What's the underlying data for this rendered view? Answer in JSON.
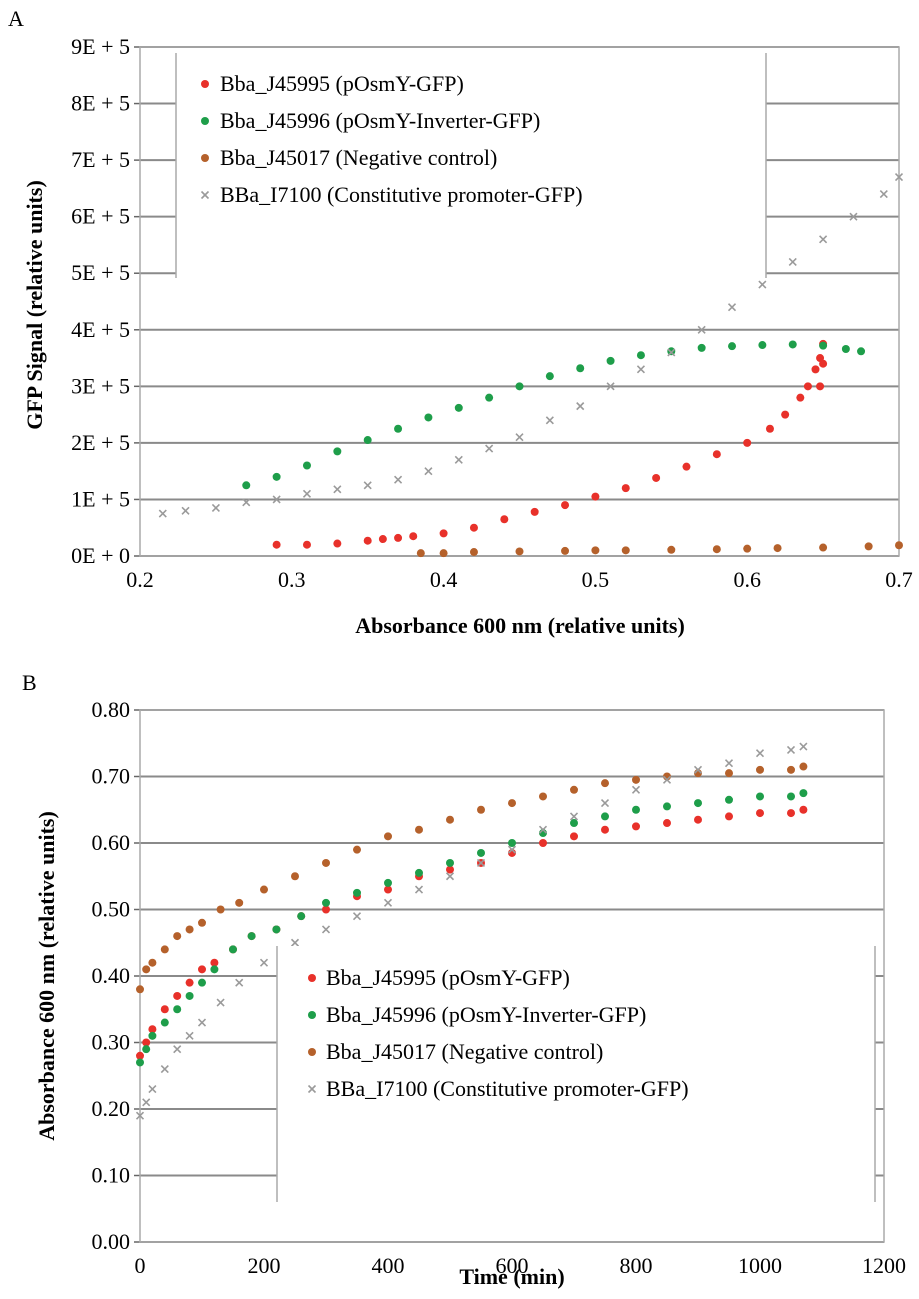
{
  "panels": [
    {
      "letter": "A",
      "chart_data": {
        "type": "scatter",
        "title": "",
        "xlabel": "Absorbance 600 nm (relative units)",
        "ylabel": "GFP Signal (relative units)",
        "xlim": [
          0.2,
          0.7
        ],
        "ylim": [
          0,
          900000
        ],
        "x_ticks": [
          "0.2",
          "0.3",
          "0.4",
          "0.5",
          "0.6",
          "0.7"
        ],
        "y_ticks": [
          "0E + 0",
          "1E + 5",
          "2E + 5",
          "3E + 5",
          "4E + 5",
          "5E + 5",
          "6E + 5",
          "7E + 5",
          "8E + 5",
          "9E + 5"
        ],
        "grid": "horizontal",
        "legend_position": "top-left",
        "series": [
          {
            "name": "Bba_J45995 (pOsmY-GFP)",
            "color": "#e8312a",
            "marker": "dot",
            "x": [
              0.29,
              0.31,
              0.33,
              0.35,
              0.36,
              0.37,
              0.38,
              0.4,
              0.42,
              0.44,
              0.46,
              0.48,
              0.5,
              0.52,
              0.54,
              0.56,
              0.58,
              0.6,
              0.615,
              0.625,
              0.635,
              0.64,
              0.645,
              0.648,
              0.65,
              0.648,
              0.65
            ],
            "y": [
              20000,
              20000,
              22000,
              27000,
              30000,
              32000,
              35000,
              40000,
              50000,
              65000,
              78000,
              90000,
              105000,
              120000,
              138000,
              158000,
              180000,
              200000,
              225000,
              250000,
              280000,
              300000,
              330000,
              350000,
              375000,
              300000,
              340000
            ]
          },
          {
            "name": "Bba_J45996 (pOsmY-Inverter-GFP)",
            "color": "#1e9e4a",
            "marker": "dot",
            "x": [
              0.27,
              0.29,
              0.31,
              0.33,
              0.35,
              0.37,
              0.39,
              0.41,
              0.43,
              0.45,
              0.47,
              0.49,
              0.51,
              0.53,
              0.55,
              0.57,
              0.59,
              0.61,
              0.63,
              0.65,
              0.665,
              0.675
            ],
            "y": [
              125000,
              140000,
              160000,
              185000,
              205000,
              225000,
              245000,
              262000,
              280000,
              300000,
              318000,
              332000,
              345000,
              355000,
              362000,
              368000,
              371000,
              373000,
              374000,
              372000,
              366000,
              362000
            ]
          },
          {
            "name": "Bba_J45017 (Negative control)",
            "color": "#b5612b",
            "marker": "dot",
            "x": [
              0.385,
              0.4,
              0.42,
              0.45,
              0.48,
              0.5,
              0.52,
              0.55,
              0.58,
              0.6,
              0.62,
              0.65,
              0.68,
              0.7
            ],
            "y": [
              5000,
              5000,
              7000,
              8000,
              9000,
              10000,
              10000,
              11000,
              12000,
              13000,
              14000,
              15000,
              17000,
              19000
            ]
          },
          {
            "name": "BBa_I7100 (Constitutive promoter-GFP)",
            "color": "#9a9a9a",
            "marker": "x",
            "x": [
              0.215,
              0.23,
              0.25,
              0.27,
              0.29,
              0.31,
              0.33,
              0.35,
              0.37,
              0.39,
              0.41,
              0.43,
              0.45,
              0.47,
              0.49,
              0.51,
              0.53,
              0.55,
              0.57,
              0.59,
              0.61,
              0.63,
              0.65,
              0.67,
              0.69,
              0.7
            ],
            "y": [
              75000,
              80000,
              85000,
              95000,
              100000,
              110000,
              118000,
              125000,
              135000,
              150000,
              170000,
              190000,
              210000,
              240000,
              265000,
              300000,
              330000,
              360000,
              400000,
              440000,
              480000,
              520000,
              560000,
              600000,
              640000,
              670000
            ]
          }
        ]
      }
    },
    {
      "letter": "B",
      "chart_data": {
        "type": "scatter",
        "title": "",
        "xlabel": "Time (min)",
        "ylabel": "Absorbance 600 nm (relative units)",
        "xlim": [
          0,
          1200
        ],
        "ylim": [
          0,
          0.8
        ],
        "x_ticks": [
          "0",
          "200",
          "400",
          "600",
          "800",
          "1000",
          "1200"
        ],
        "y_ticks": [
          "0.00",
          "0.10",
          "0.20",
          "0.30",
          "0.40",
          "0.50",
          "0.60",
          "0.70",
          "0.80"
        ],
        "grid": "horizontal",
        "legend_position": "bottom-right",
        "series": [
          {
            "name": "Bba_J45995 (pOsmY-GFP)",
            "color": "#e8312a",
            "marker": "dot",
            "x": [
              0,
              10,
              20,
              40,
              60,
              80,
              100,
              120,
              150,
              180,
              220,
              260,
              300,
              350,
              400,
              450,
              500,
              550,
              600,
              650,
              700,
              750,
              800,
              850,
              900,
              950,
              1000,
              1050,
              1070
            ],
            "y": [
              0.28,
              0.3,
              0.32,
              0.35,
              0.37,
              0.39,
              0.41,
              0.42,
              0.44,
              0.46,
              0.47,
              0.49,
              0.5,
              0.52,
              0.53,
              0.55,
              0.56,
              0.57,
              0.585,
              0.6,
              0.61,
              0.62,
              0.625,
              0.63,
              0.635,
              0.64,
              0.645,
              0.645,
              0.65
            ]
          },
          {
            "name": "Bba_J45996 (pOsmY-Inverter-GFP)",
            "color": "#1e9e4a",
            "marker": "dot",
            "x": [
              0,
              10,
              20,
              40,
              60,
              80,
              100,
              120,
              150,
              180,
              220,
              260,
              300,
              350,
              400,
              450,
              500,
              550,
              600,
              650,
              700,
              750,
              800,
              850,
              900,
              950,
              1000,
              1050,
              1070
            ],
            "y": [
              0.27,
              0.29,
              0.31,
              0.33,
              0.35,
              0.37,
              0.39,
              0.41,
              0.44,
              0.46,
              0.47,
              0.49,
              0.51,
              0.525,
              0.54,
              0.555,
              0.57,
              0.585,
              0.6,
              0.615,
              0.63,
              0.64,
              0.65,
              0.655,
              0.66,
              0.665,
              0.67,
              0.67,
              0.675
            ]
          },
          {
            "name": "Bba_J45017 (Negative control)",
            "color": "#b5612b",
            "marker": "dot",
            "x": [
              0,
              10,
              20,
              40,
              60,
              80,
              100,
              130,
              160,
              200,
              250,
              300,
              350,
              400,
              450,
              500,
              550,
              600,
              650,
              700,
              750,
              800,
              850,
              900,
              950,
              1000,
              1050,
              1070
            ],
            "y": [
              0.38,
              0.41,
              0.42,
              0.44,
              0.46,
              0.47,
              0.48,
              0.5,
              0.51,
              0.53,
              0.55,
              0.57,
              0.59,
              0.61,
              0.62,
              0.635,
              0.65,
              0.66,
              0.67,
              0.68,
              0.69,
              0.695,
              0.7,
              0.705,
              0.705,
              0.71,
              0.71,
              0.715
            ]
          },
          {
            "name": "BBa_I7100 (Constitutive promoter-GFP)",
            "color": "#9a9a9a",
            "marker": "x",
            "x": [
              0,
              10,
              20,
              40,
              60,
              80,
              100,
              130,
              160,
              200,
              250,
              300,
              350,
              400,
              450,
              500,
              550,
              600,
              650,
              700,
              750,
              800,
              850,
              900,
              950,
              1000,
              1050,
              1070
            ],
            "y": [
              0.19,
              0.21,
              0.23,
              0.26,
              0.29,
              0.31,
              0.33,
              0.36,
              0.39,
              0.42,
              0.45,
              0.47,
              0.49,
              0.51,
              0.53,
              0.55,
              0.57,
              0.59,
              0.62,
              0.64,
              0.66,
              0.68,
              0.695,
              0.71,
              0.72,
              0.735,
              0.74,
              0.745
            ]
          }
        ]
      }
    }
  ]
}
